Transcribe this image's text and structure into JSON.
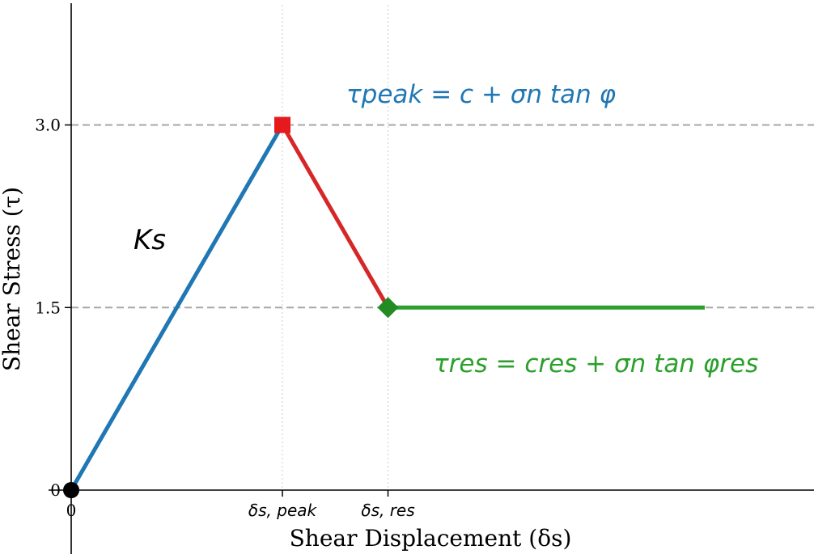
{
  "chart_data": {
    "type": "line",
    "xlabel": "Shear Displacement (δs)",
    "ylabel": "Shear Stress (τ)",
    "xlim": [
      0,
      3.5
    ],
    "ylim": [
      -0.3,
      4.0
    ],
    "grid": false,
    "x_ticks": [
      {
        "value": 0,
        "label": "0"
      },
      {
        "value": 1.0,
        "label": "δs, peak"
      },
      {
        "value": 1.5,
        "label": "δs, res"
      }
    ],
    "y_ticks": [
      {
        "value": 0,
        "label": "0"
      },
      {
        "value": 1.5,
        "label": "1.5"
      },
      {
        "value": 3.0,
        "label": "3.0"
      }
    ],
    "reference_lines": {
      "horizontal": [
        1.5,
        3.0
      ],
      "vertical": [
        1.0,
        1.5
      ]
    },
    "series": [
      {
        "segment": "elastic",
        "color": "#1f77b4",
        "points": [
          [
            0,
            0
          ],
          [
            1.0,
            3.0
          ]
        ]
      },
      {
        "segment": "softening",
        "color": "#d62728",
        "points": [
          [
            1.0,
            3.0
          ],
          [
            1.5,
            1.5
          ]
        ]
      },
      {
        "segment": "residual",
        "color": "#2ca02c",
        "points": [
          [
            1.5,
            1.5
          ],
          [
            3.0,
            1.5
          ]
        ]
      }
    ],
    "markers": [
      {
        "shape": "circle",
        "color": "#000000",
        "x": 0,
        "y": 0
      },
      {
        "shape": "square",
        "color": "#e41a1c",
        "x": 1.0,
        "y": 3.0
      },
      {
        "shape": "diamond",
        "color": "#228b22",
        "x": 1.5,
        "y": 1.5
      }
    ],
    "annotations": [
      {
        "text": "Ks",
        "color": "#000000"
      },
      {
        "text": "τpeak = c + σn tan φ",
        "color": "#1f77b4"
      },
      {
        "text": "τres = cres + σn tan φres",
        "color": "#2ca02c"
      }
    ]
  }
}
